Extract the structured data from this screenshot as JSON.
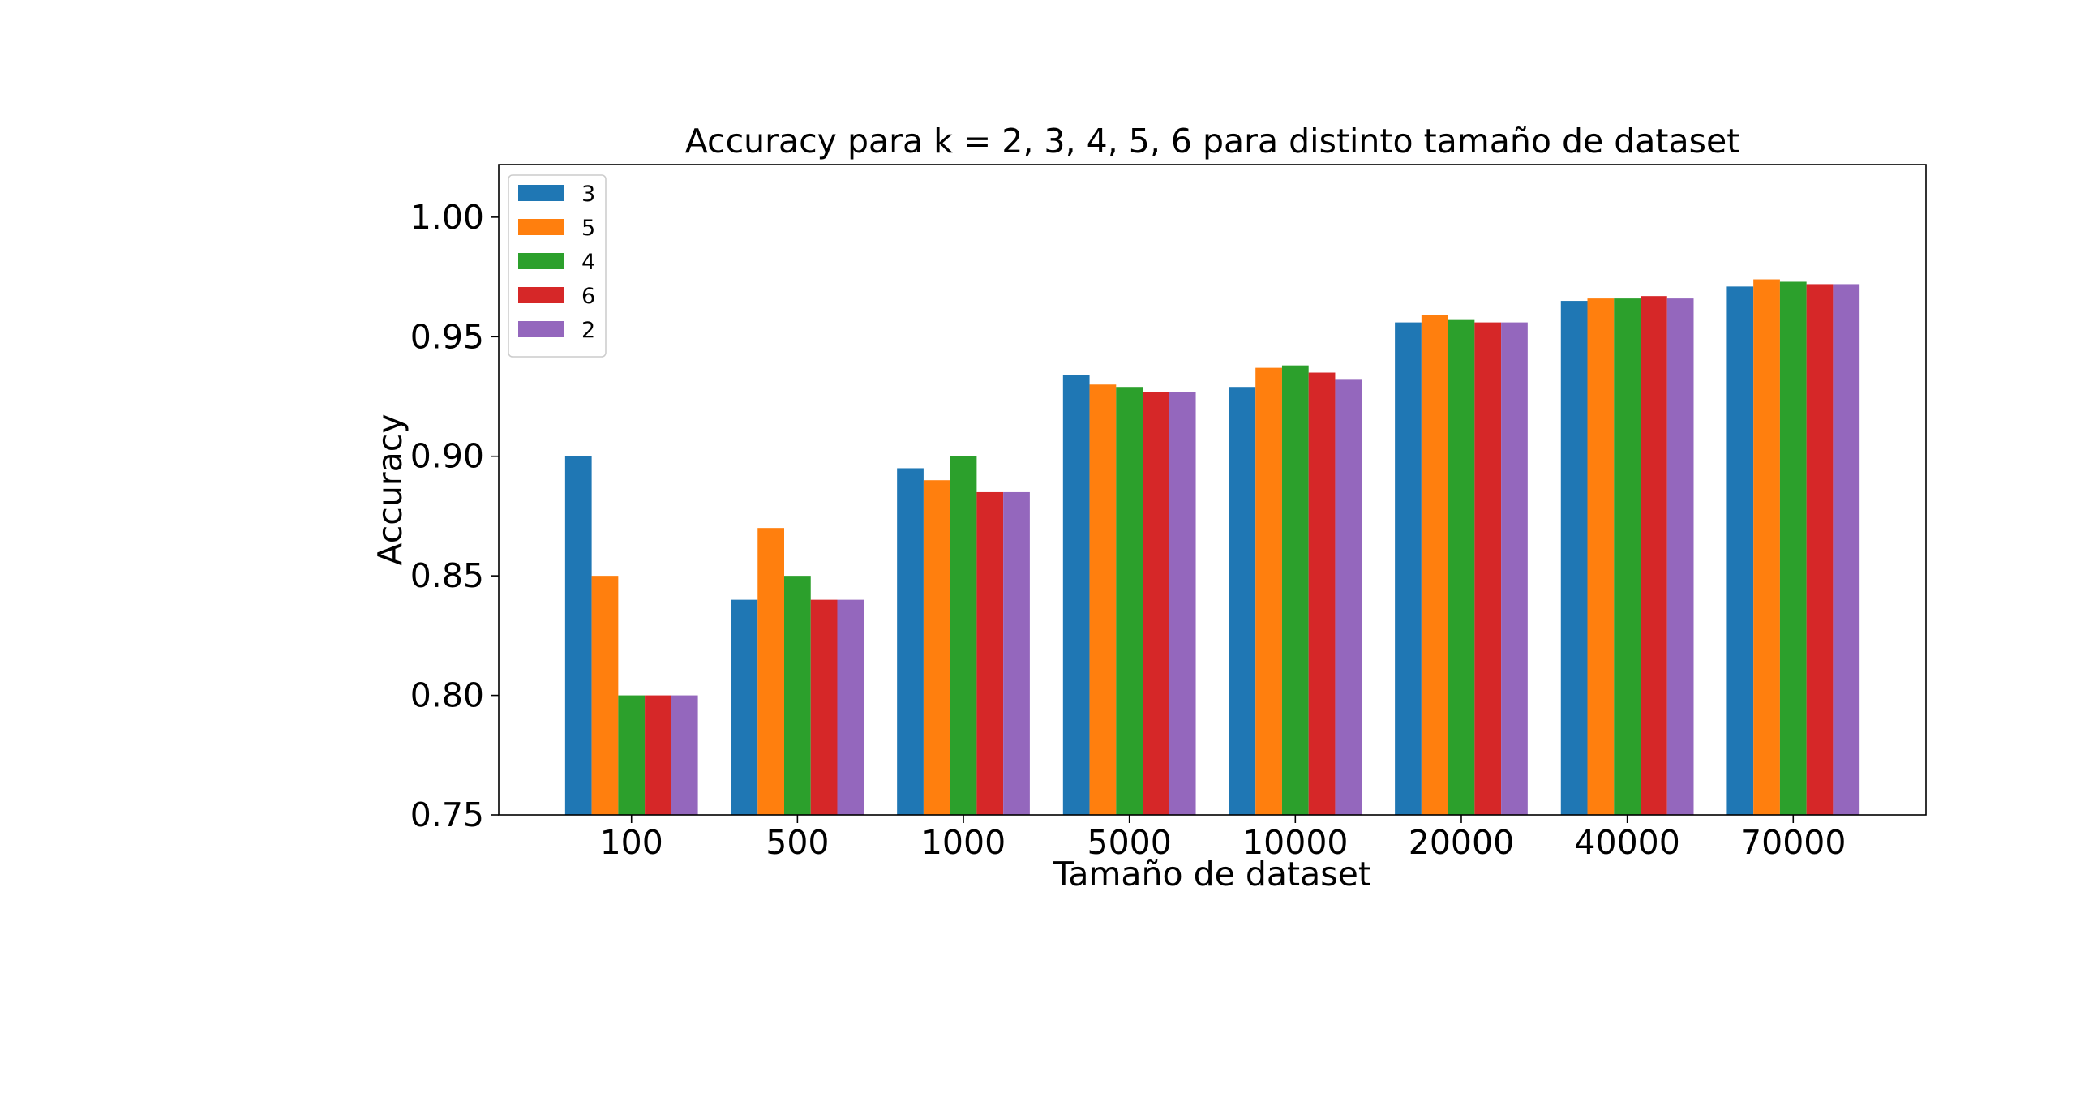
{
  "chart_data": {
    "type": "bar",
    "title": "Accuracy para k = 2, 3, 4, 5, 6 para distinto tamaño de dataset",
    "xlabel": "Tamaño de dataset",
    "ylabel": "Accuracy",
    "ylim": [
      0.75,
      1.022
    ],
    "yticks": [
      0.75,
      0.8,
      0.85,
      0.9,
      0.95,
      1.0
    ],
    "ytick_labels": [
      "0.75",
      "0.80",
      "0.85",
      "0.90",
      "0.95",
      "1.00"
    ],
    "grid": false,
    "legend_position": "top-left",
    "categories": [
      "100",
      "500",
      "1000",
      "5000",
      "10000",
      "20000",
      "40000",
      "70000"
    ],
    "series": [
      {
        "name": "3",
        "color": "#1f77b4",
        "values": [
          0.9,
          0.84,
          0.895,
          0.934,
          0.929,
          0.956,
          0.965,
          0.971
        ]
      },
      {
        "name": "5",
        "color": "#ff7f0e",
        "values": [
          0.85,
          0.87,
          0.89,
          0.93,
          0.937,
          0.959,
          0.966,
          0.974
        ]
      },
      {
        "name": "4",
        "color": "#2ca02c",
        "values": [
          0.8,
          0.85,
          0.9,
          0.929,
          0.938,
          0.957,
          0.966,
          0.973
        ]
      },
      {
        "name": "6",
        "color": "#d62728",
        "values": [
          0.8,
          0.84,
          0.885,
          0.927,
          0.935,
          0.956,
          0.967,
          0.972
        ]
      },
      {
        "name": "2",
        "color": "#9467bd",
        "values": [
          0.8,
          0.84,
          0.885,
          0.927,
          0.932,
          0.956,
          0.966,
          0.972
        ]
      }
    ]
  }
}
